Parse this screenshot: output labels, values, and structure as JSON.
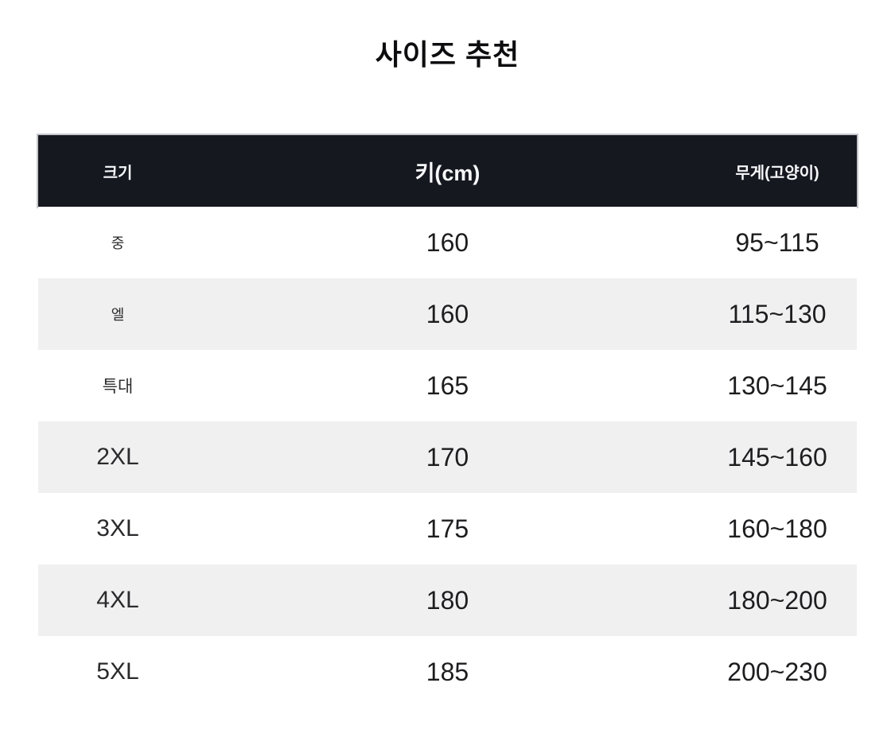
{
  "title": "사이즈 추천",
  "chart_data": {
    "type": "table",
    "title": "사이즈 추천",
    "columns": [
      "크기",
      "키(cm)",
      "무게(고양이)"
    ],
    "rows": [
      [
        "중",
        "160",
        "95~115"
      ],
      [
        "엘",
        "160",
        "115~130"
      ],
      [
        "특대",
        "165",
        "130~145"
      ],
      [
        "2XL",
        "170",
        "145~160"
      ],
      [
        "3XL",
        "175",
        "160~180"
      ],
      [
        "4XL",
        "180",
        "180~200"
      ],
      [
        "5XL",
        "185",
        "200~230"
      ]
    ],
    "layout": {
      "header_position": "top",
      "row_striping": "alternating",
      "column_alignment": "center"
    }
  },
  "colors": {
    "header_bg": "#161820",
    "header_text": "#f7f8fa",
    "row_bg": "#ffffff",
    "row_alt_bg": "#f0f0f1",
    "body_text": "#1d1d1f",
    "title_text": "#0d0d0f"
  }
}
